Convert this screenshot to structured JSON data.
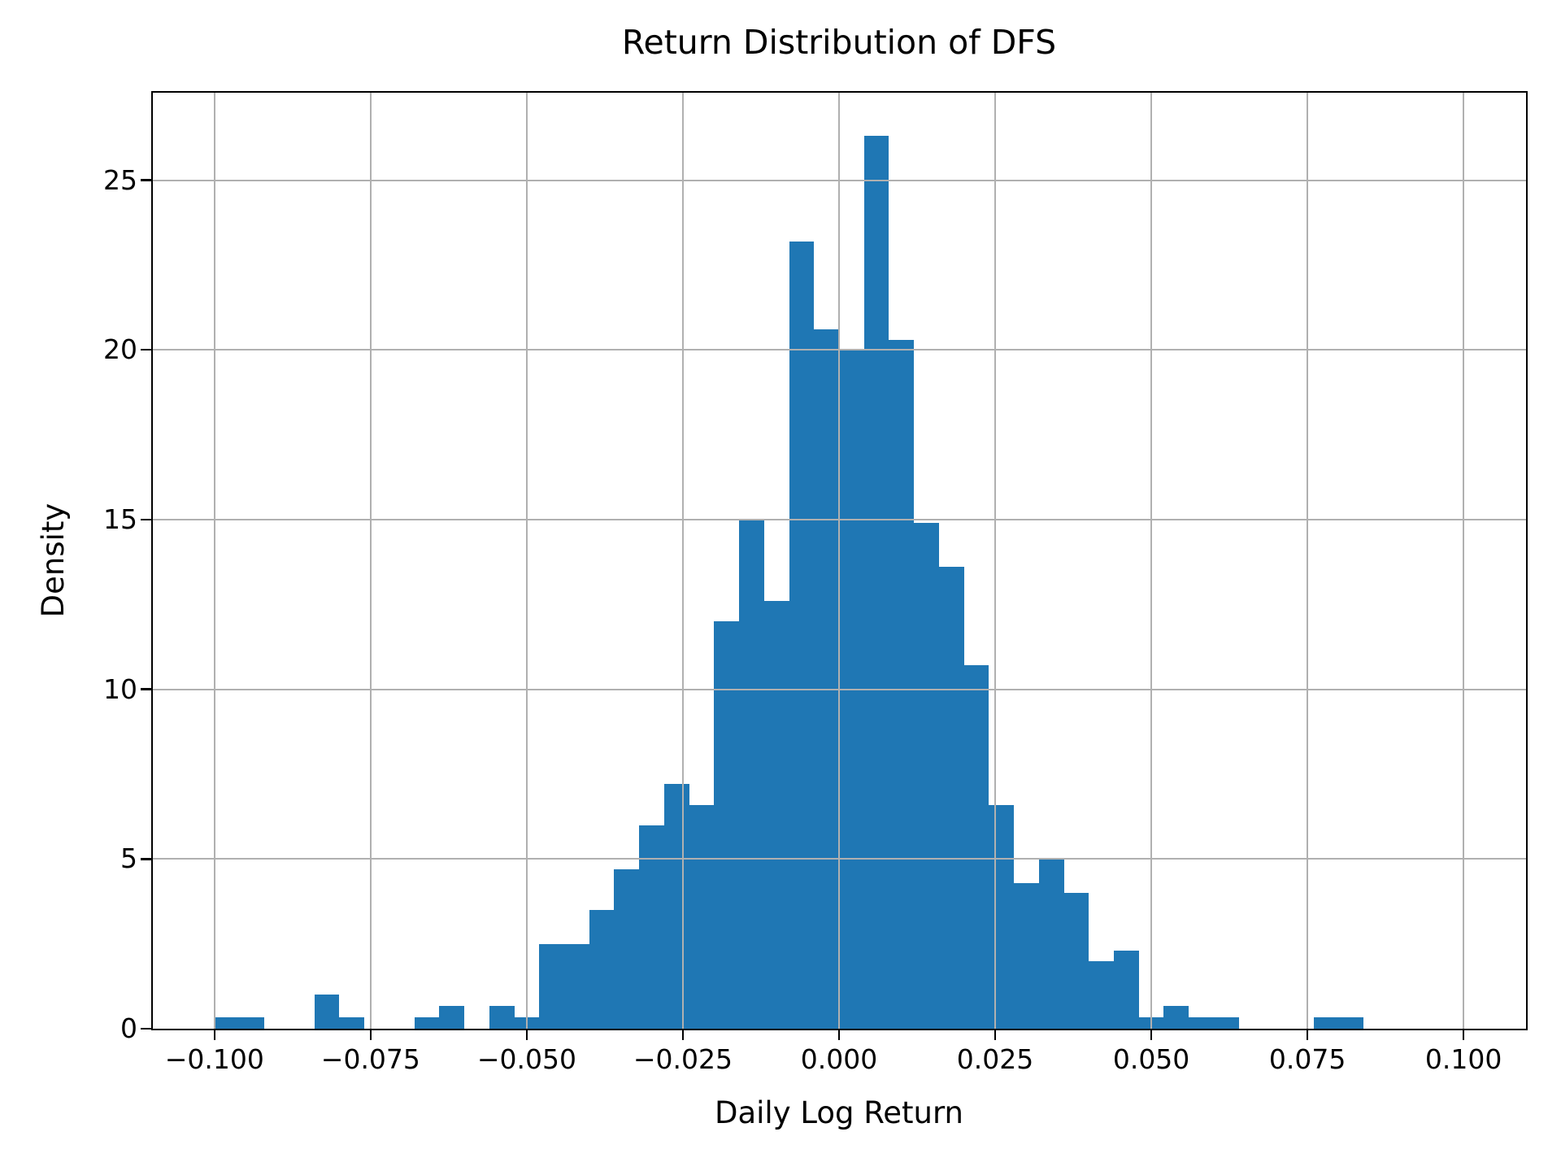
{
  "figure": {
    "title": "Return Distribution of DFS",
    "xlabel": "Daily Log Return",
    "ylabel": "Density"
  },
  "chart_data": {
    "type": "bar",
    "subtype": "histogram",
    "title": "Return Distribution of DFS",
    "xlabel": "Daily Log Return",
    "ylabel": "Density",
    "grid": true,
    "legend": false,
    "bar_color": "#1f77b4",
    "grid_color": "#b0b0b0",
    "axis_color": "#000000",
    "background_color": "#ffffff",
    "xlim": [
      -0.11,
      0.11
    ],
    "ylim": [
      0,
      27.6
    ],
    "x_ticks": [
      -0.1,
      -0.075,
      -0.05,
      -0.025,
      0.0,
      0.025,
      0.05,
      0.075,
      0.1
    ],
    "x_tick_labels": [
      "−0.100",
      "−0.075",
      "−0.050",
      "−0.025",
      "0.000",
      "0.025",
      "0.050",
      "0.075",
      "0.100"
    ],
    "y_ticks": [
      0,
      5,
      10,
      15,
      20,
      25
    ],
    "y_tick_labels": [
      "0",
      "5",
      "10",
      "15",
      "20",
      "25"
    ],
    "bin_width": 0.004,
    "bin_edges": [
      -0.1,
      -0.096,
      -0.092,
      -0.088,
      -0.084,
      -0.08,
      -0.076,
      -0.072,
      -0.068,
      -0.064,
      -0.06,
      -0.056,
      -0.052,
      -0.048,
      -0.044,
      -0.04,
      -0.036,
      -0.032,
      -0.028,
      -0.024,
      -0.02,
      -0.016,
      -0.012,
      -0.008,
      -0.004,
      0.0,
      0.004,
      0.008,
      0.012,
      0.016,
      0.02,
      0.024,
      0.028,
      0.032,
      0.036,
      0.04,
      0.044,
      0.048,
      0.052,
      0.056,
      0.06,
      0.064,
      0.068,
      0.072,
      0.076,
      0.08,
      0.084
    ],
    "densities": [
      0.33,
      0.33,
      0,
      0,
      1.0,
      0.33,
      0,
      0,
      0.33,
      0.67,
      0,
      0.67,
      0.33,
      2.5,
      2.5,
      3.5,
      4.7,
      6.0,
      7.2,
      6.6,
      12.0,
      15.0,
      12.6,
      23.2,
      20.6,
      20.0,
      26.3,
      20.3,
      14.9,
      13.6,
      10.7,
      6.6,
      4.3,
      5.0,
      4.0,
      2.0,
      2.3,
      0.33,
      0.67,
      0.33,
      0.33,
      0,
      0,
      0,
      0.33,
      0.33
    ]
  }
}
